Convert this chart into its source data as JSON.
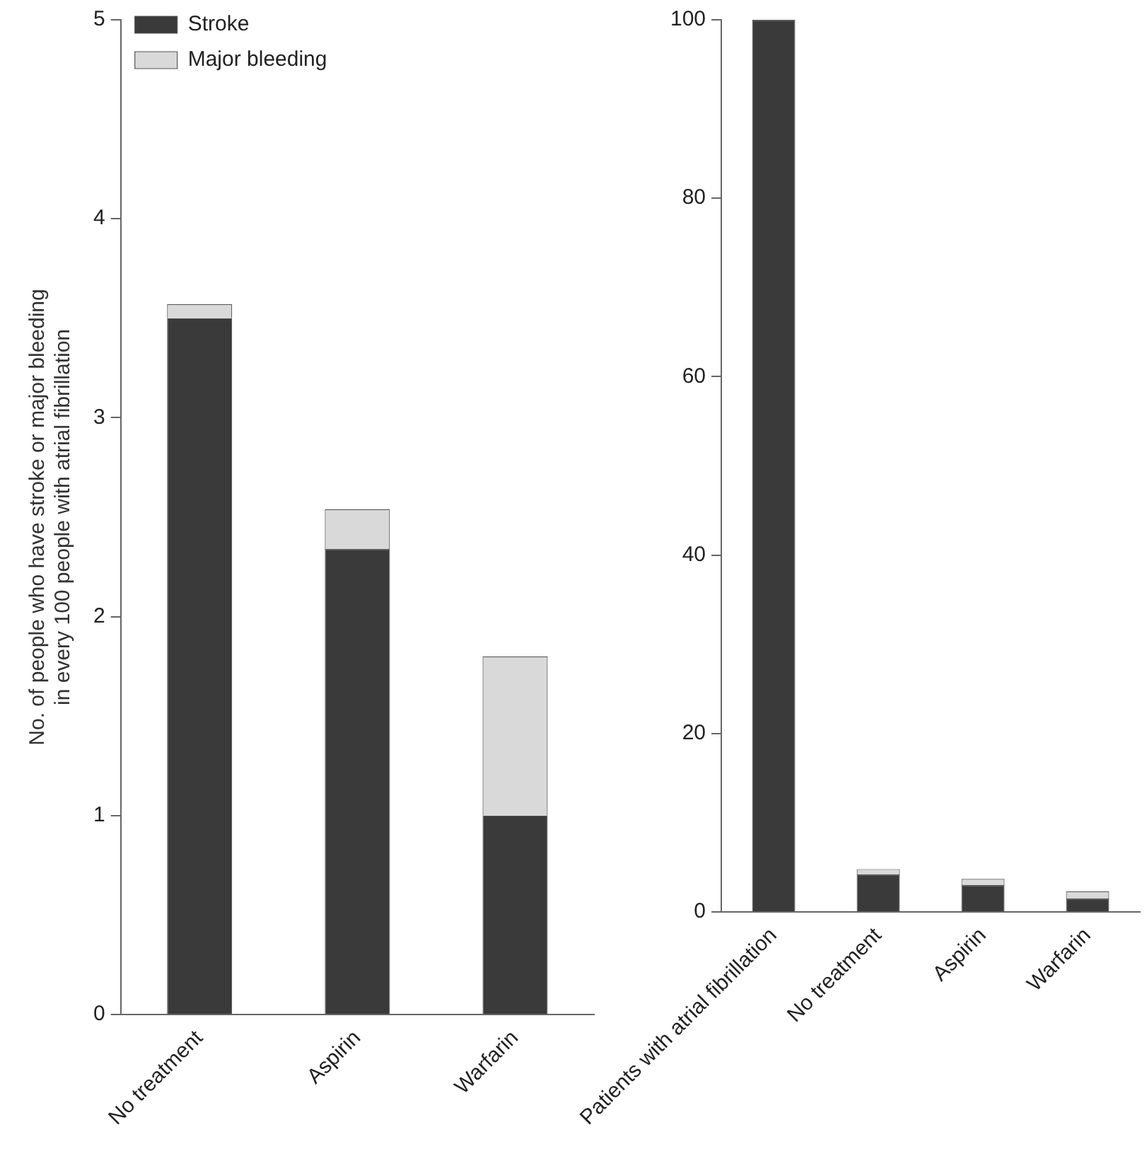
{
  "chart_data": [
    {
      "type": "bar",
      "stacked": true,
      "ylabel": "No. of people who have stroke or major bleeding\nin every 100 people with atrial fibrillation",
      "categories": [
        "No treatment",
        "Aspirin",
        "Warfarin"
      ],
      "series": [
        {
          "name": "Stroke",
          "color": "#3a3a3a",
          "values": [
            3.5,
            2.34,
            1.0
          ]
        },
        {
          "name": "Major bleeding",
          "color": "#d9d9d9",
          "values": [
            0.07,
            0.2,
            0.8
          ]
        }
      ],
      "ylim": [
        0,
        5
      ],
      "yticks": [
        0,
        1,
        2,
        3,
        4,
        5
      ],
      "grid": false,
      "legend": "top left"
    },
    {
      "type": "bar",
      "stacked": true,
      "categories": [
        "Patients with atrial fibrillation",
        "No treatment",
        "Aspirin",
        "Warfarin"
      ],
      "series": [
        {
          "color": "#3a3a3a",
          "values": [
            100,
            4.2,
            3.0,
            1.5
          ]
        },
        {
          "color": "#d9d9d9",
          "values": [
            0,
            0.6,
            0.7,
            0.8
          ]
        }
      ],
      "ylim": [
        0,
        100
      ],
      "yticks": [
        0,
        20,
        40,
        60,
        80,
        100
      ],
      "grid": false
    }
  ]
}
